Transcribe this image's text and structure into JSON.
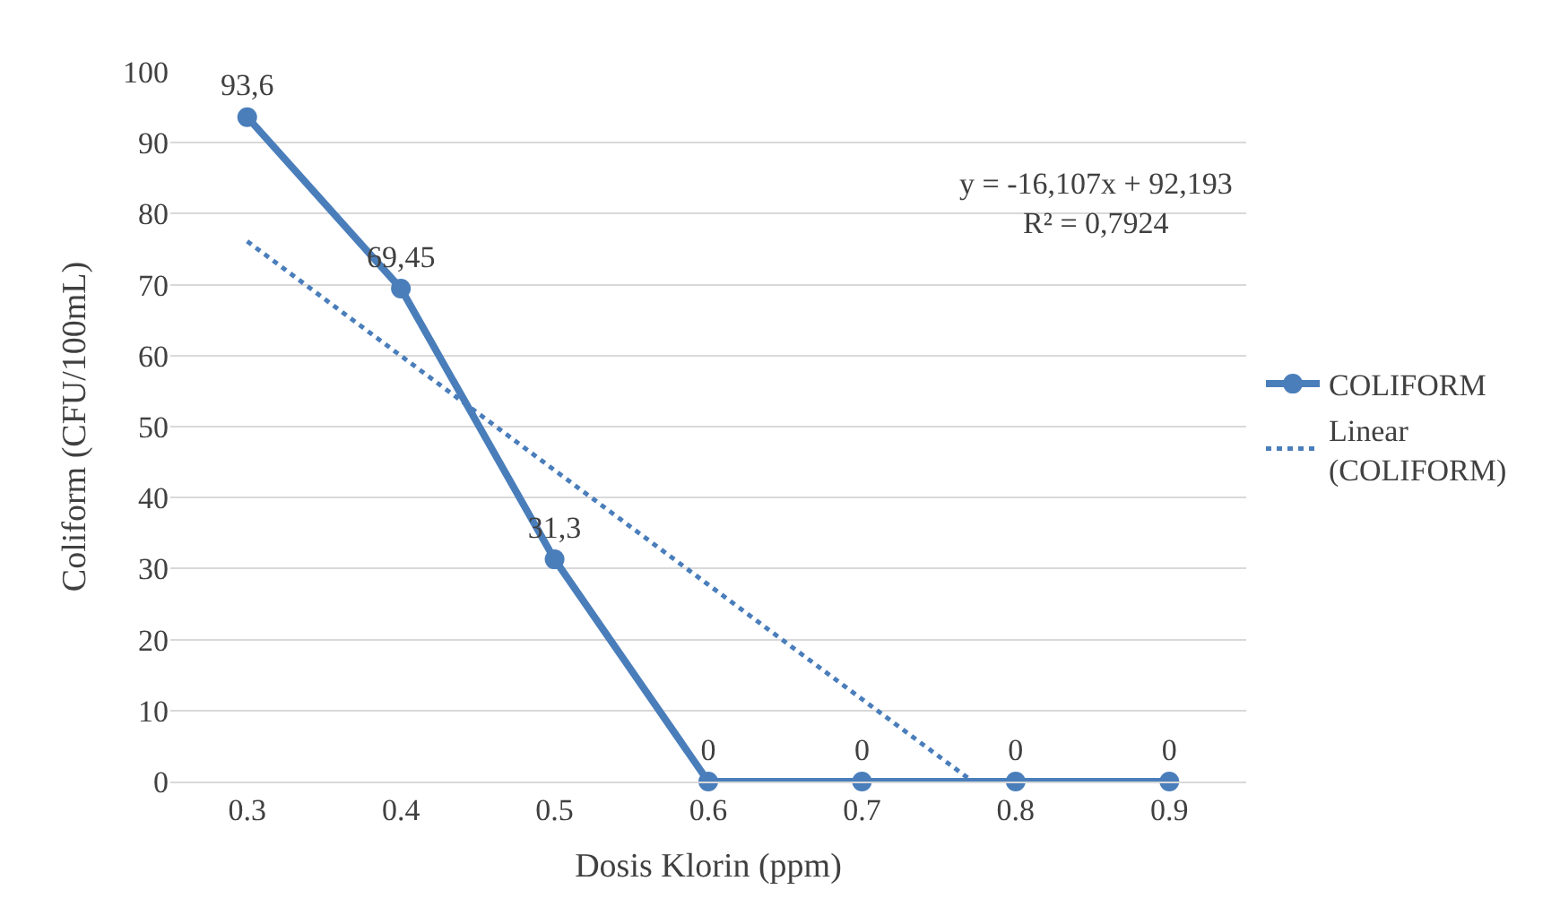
{
  "chart_data": {
    "type": "line",
    "xlabel": "Dosis Klorin (ppm)",
    "ylabel": "Coliform (CFU/100mL)",
    "x": [
      0.3,
      0.4,
      0.5,
      0.6,
      0.7,
      0.8,
      0.9
    ],
    "xlim": [
      0.25,
      0.95
    ],
    "xticks": [
      0.3,
      0.4,
      0.5,
      0.6,
      0.7,
      0.8,
      0.9
    ],
    "ylim": [
      0,
      100
    ],
    "yticks": [
      0,
      10,
      20,
      30,
      40,
      50,
      60,
      70,
      80,
      90,
      100
    ],
    "grid": "y",
    "legend": "right",
    "annotations": [
      "y = -16,107x + 92,193\nR² = 0,7924"
    ],
    "series": [
      {
        "name": "COLIFORM",
        "color": "#4a7ebb",
        "values": [
          93.6,
          69.45,
          31.3,
          0,
          0,
          0,
          0
        ],
        "marker": "circle",
        "line_style": "solid",
        "value_labels": [
          "93,6",
          "69,45",
          "31,3",
          "0",
          "0",
          "0",
          "0"
        ]
      },
      {
        "name": "Linear (COLIFORM)",
        "color": "#4a7ebb",
        "type": "line",
        "x": [
          0.3,
          0.772
        ],
        "values": [
          76.1,
          0
        ],
        "marker": "none",
        "line_style": "dotted"
      }
    ]
  }
}
